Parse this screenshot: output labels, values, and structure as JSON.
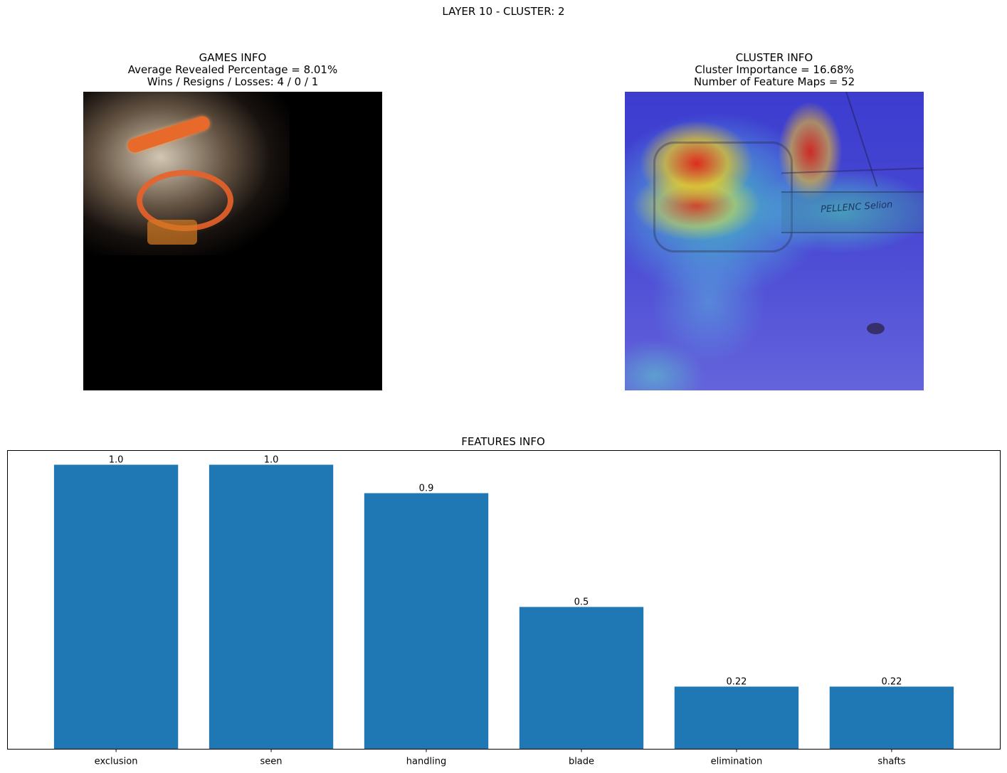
{
  "figure": {
    "suptitle": "LAYER 10 - CLUSTER: 2"
  },
  "games_info": {
    "title": "GAMES INFO",
    "line1": "Average Revealed Percentage = 8.01%",
    "line2": "Wins / Resigns / Losses: 4 / 0 / 1"
  },
  "cluster_info": {
    "title": "CLUSTER INFO",
    "line1": "Cluster Importance = 16.68%",
    "line2": "Number of Feature Maps = 52",
    "overlay_text": "PELLENC Selion"
  },
  "chart_data": {
    "type": "bar",
    "title": "FEATURES INFO",
    "categories": [
      "exclusion",
      "seen",
      "handling",
      "blade",
      "elimination",
      "shafts"
    ],
    "values": [
      1.0,
      1.0,
      0.9,
      0.5,
      0.22,
      0.22
    ],
    "value_labels": [
      "1.0",
      "1.0",
      "0.9",
      "0.5",
      "0.22",
      "0.22"
    ],
    "color": "#1f77b4",
    "xlabel": "",
    "ylabel": "",
    "ylim": [
      0,
      1.05
    ],
    "y_ticks_visible": false,
    "grid": false
  }
}
